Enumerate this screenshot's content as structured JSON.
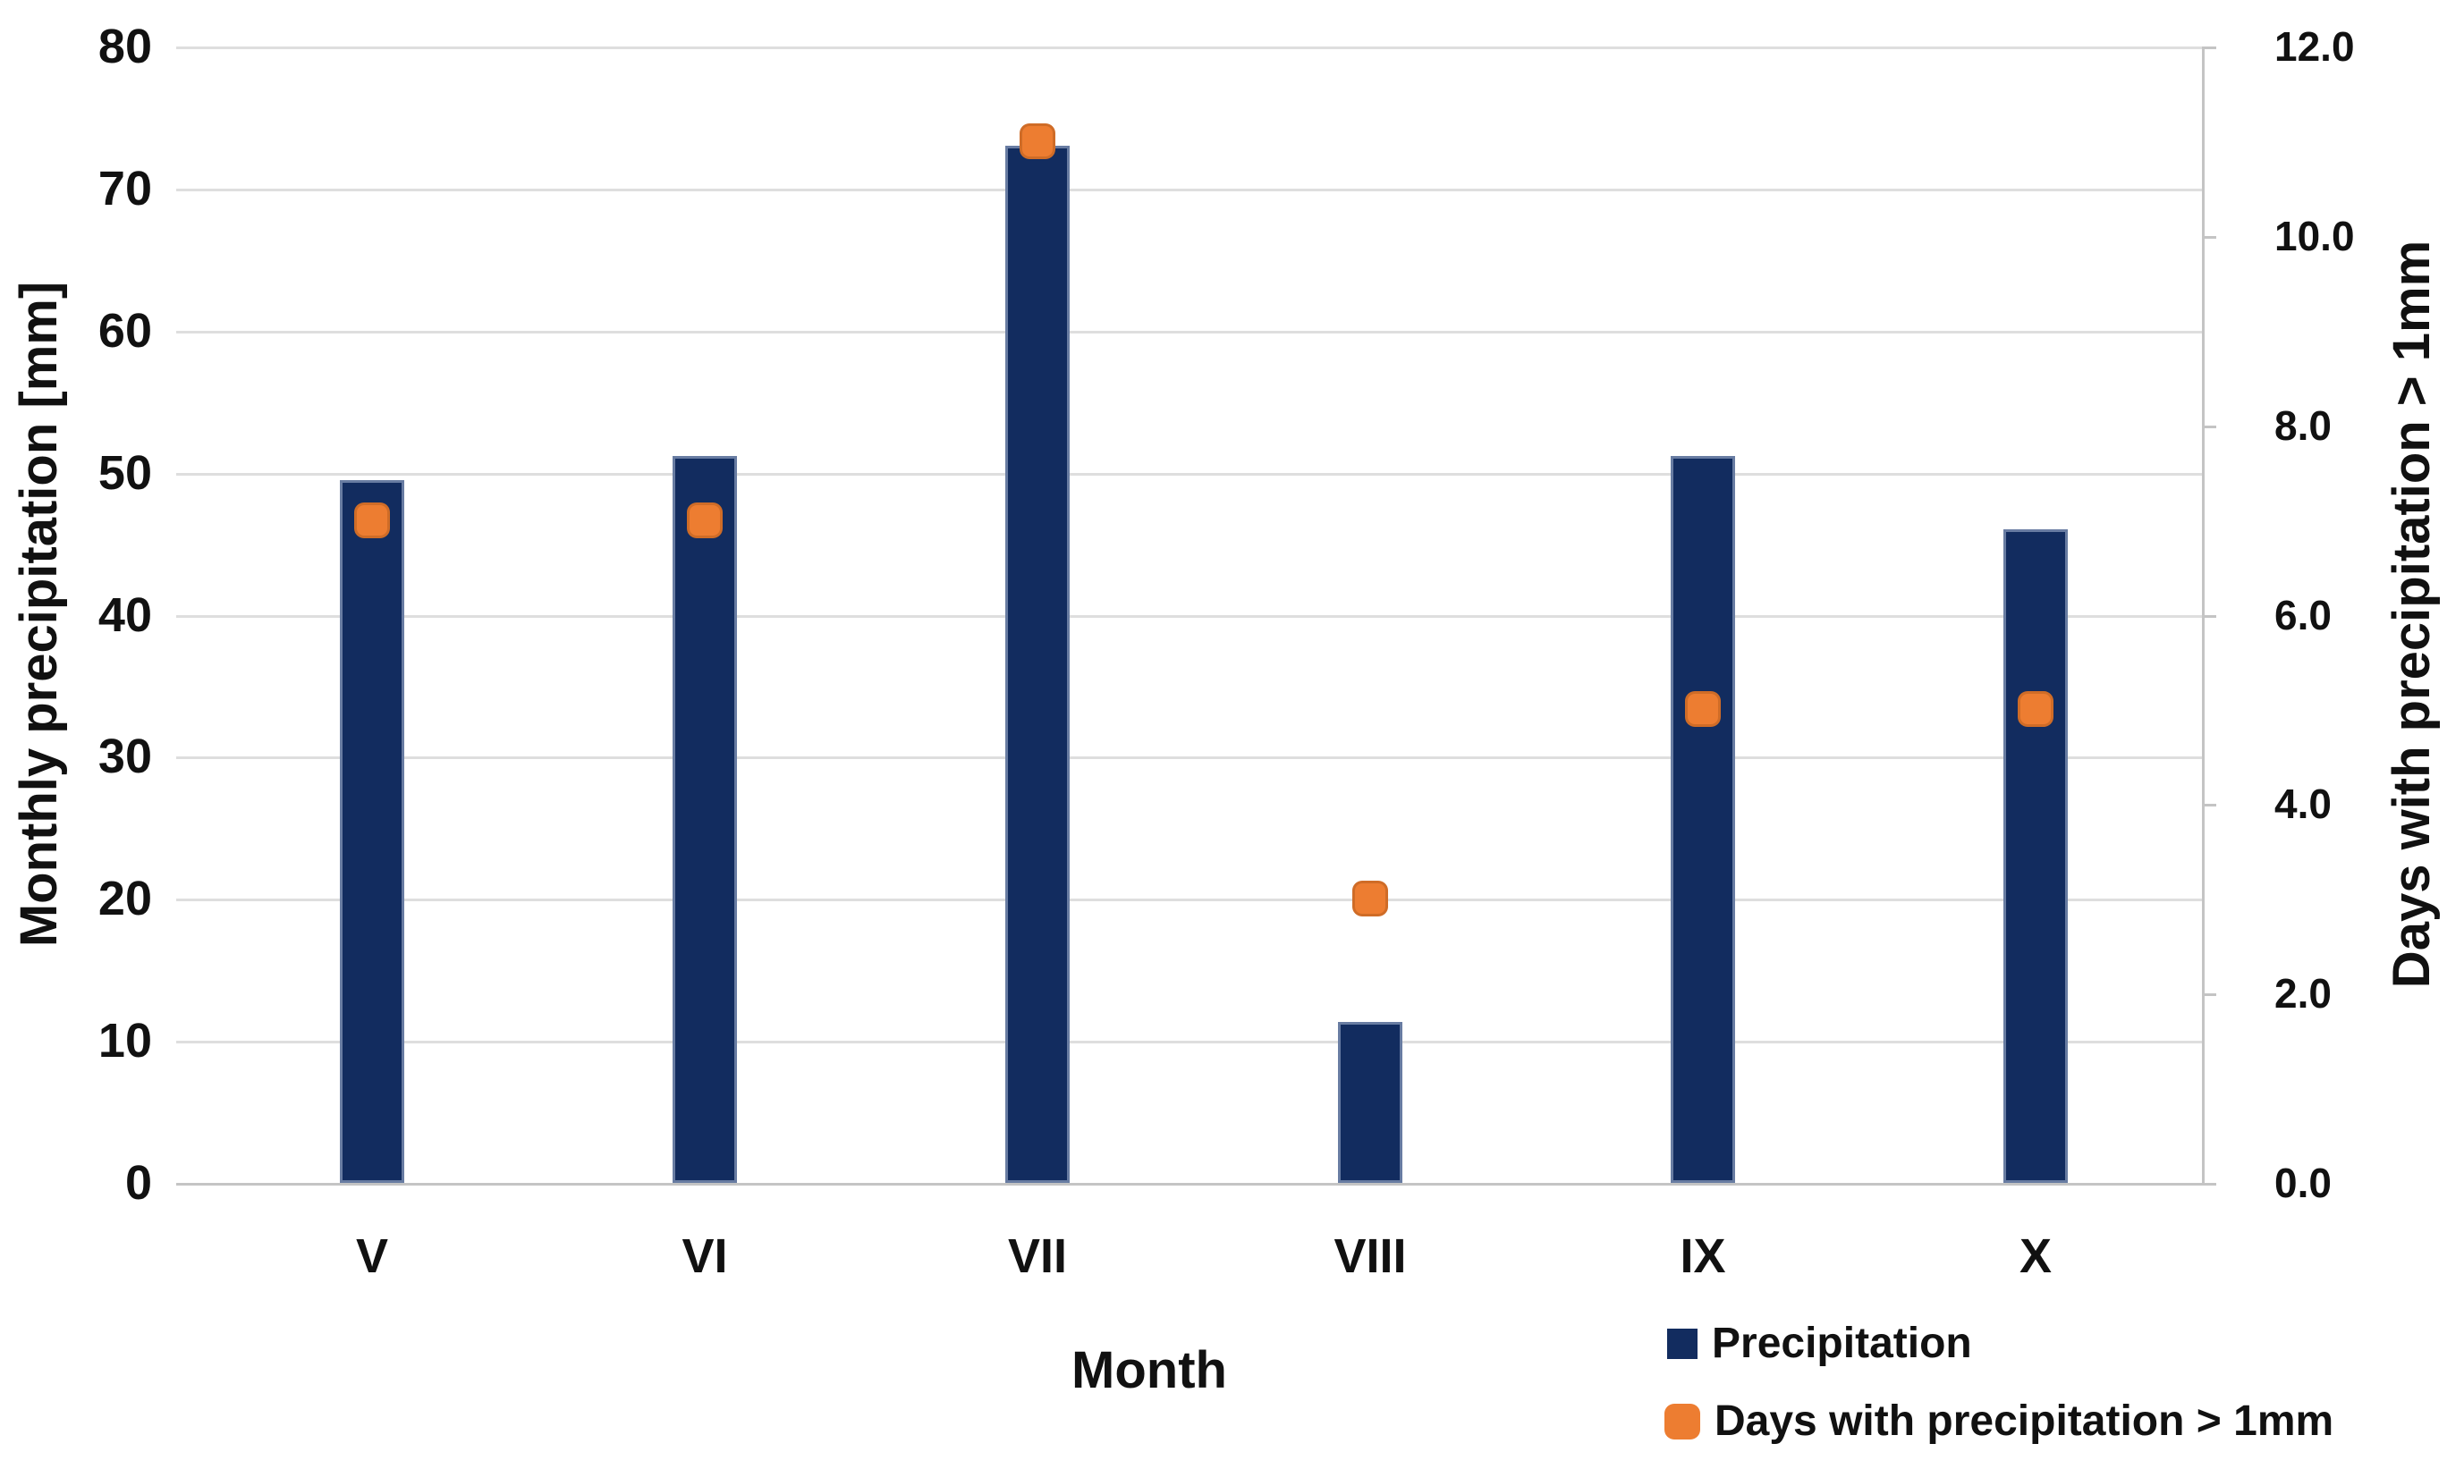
{
  "chart_data": {
    "type": "bar",
    "subtype": "combo-bar-scatter-dual-axis",
    "categories": [
      "V",
      "VI",
      "VII",
      "VIII",
      "IX",
      "X"
    ],
    "series": [
      {
        "name": "Precipitation",
        "type": "bar",
        "axis": "left",
        "values": [
          49.5,
          51.2,
          73.0,
          11.3,
          51.2,
          46.0
        ],
        "color": "#122C5F"
      },
      {
        "name": "Days with precipitation > 1mm",
        "type": "scatter",
        "axis": "right",
        "values": [
          7.0,
          7.0,
          11.0,
          3.0,
          5.0,
          5.0
        ],
        "color": "#ED7D31"
      }
    ],
    "left_axis": {
      "title": "Monthly precipitation [mm]",
      "min": 0,
      "max": 80,
      "step": 10,
      "tick_labels": [
        "0",
        "10",
        "20",
        "30",
        "40",
        "50",
        "60",
        "70",
        "80"
      ]
    },
    "right_axis": {
      "title": "Days with precipitation > 1mm",
      "min": 0,
      "max": 12,
      "step": 2,
      "tick_labels": [
        "0.0",
        "2.0",
        "4.0",
        "6.0",
        "8.0",
        "10.0",
        "12.0"
      ]
    },
    "x_axis": {
      "title": "Month"
    },
    "legend": {
      "position": "bottom-right",
      "entries": [
        "Precipitation",
        "Days with precipitation > 1mm"
      ]
    },
    "grid": "horizontal-on"
  },
  "colors": {
    "bar": "#122C5F",
    "marker": "#ED7D31",
    "gridline": "#DEDEDE",
    "axis_line": "#C4C4C4",
    "text": "#111111",
    "background": "#FFFFFF"
  }
}
